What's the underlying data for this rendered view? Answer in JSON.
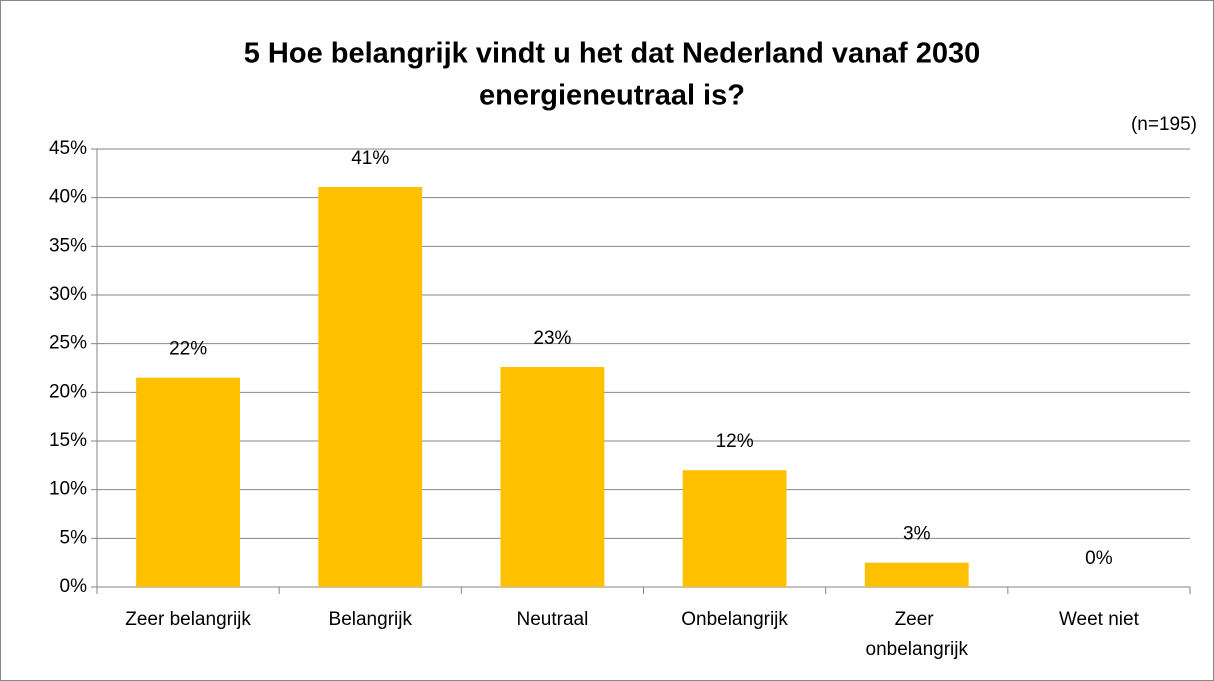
{
  "chart_data": {
    "type": "bar",
    "title": [
      "5 Hoe belangrijk vindt u het dat Nederland vanaf 2030",
      "energieneutraal is?"
    ],
    "subtitle": "(n=195)",
    "categories": [
      "Zeer belangrijk",
      "Belangrijk",
      "Neutraal",
      "Onbelangrijk",
      "Zeer onbelangrijk",
      "Weet niet"
    ],
    "values": [
      21.5,
      41.1,
      22.6,
      12.0,
      2.5,
      0
    ],
    "value_labels": [
      "22%",
      "41%",
      "23%",
      "12%",
      "3%",
      "0%"
    ],
    "color": "#ffc000",
    "ylim": [
      0,
      45
    ],
    "yticks": [
      {
        "value": 0,
        "label": "0%"
      },
      {
        "value": 5,
        "label": "5%"
      },
      {
        "value": 10,
        "label": "10%"
      },
      {
        "value": 15,
        "label": "15%"
      },
      {
        "value": 20,
        "label": "20%"
      },
      {
        "value": 25,
        "label": "25%"
      },
      {
        "value": 30,
        "label": "30%"
      },
      {
        "value": 35,
        "label": "35%"
      },
      {
        "value": 40,
        "label": "40%"
      },
      {
        "value": 45,
        "label": "45%"
      }
    ],
    "grid": true
  }
}
